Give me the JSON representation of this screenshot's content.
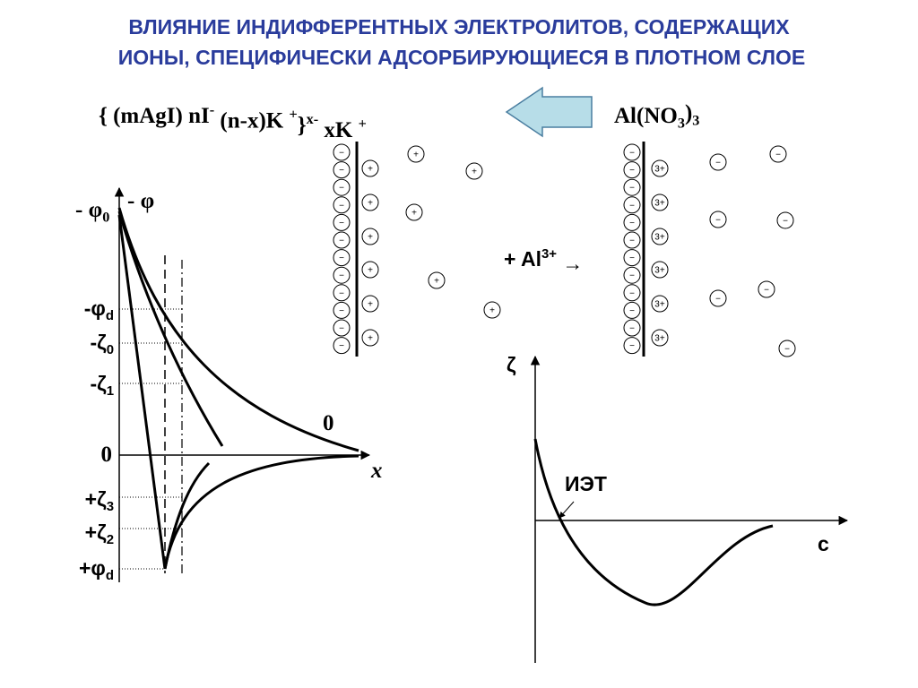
{
  "title": [
    "ВЛИЯНИЕ ИНДИФФЕРЕНТНЫХ ЭЛЕКТРОЛИТОВ, СОДЕРЖАЩИХ",
    "ИОНЫ, СПЕЦИФИЧЕСКИ  АДСОРБИРУЮЩИЕСЯ В ПЛОТНОМ СЛОЕ"
  ],
  "micelle": [
    "{ (mAgI) nI",
    "-",
    " (n-x)K ",
    "+",
    "}",
    "x-",
    " xK ",
    "+"
  ],
  "electrolyte": [
    "Al(NO",
    "3",
    ")",
    "3"
  ],
  "ions": {
    "plus": "+",
    "minus": "−",
    "al": "3+"
  },
  "added_ion": [
    "+ Al",
    "3+",
    " →"
  ],
  "potential_plot": {
    "phi0": [
      "- φ",
      "0"
    ],
    "phi": "- φ",
    "left_labels": [
      [
        "-φ",
        "d"
      ],
      [
        "-ζ",
        "0"
      ],
      [
        "-ζ",
        "1"
      ],
      [
        "0"
      ],
      [
        "+ζ",
        "3"
      ],
      [
        "+ζ",
        "2"
      ],
      [
        "+φ",
        "d"
      ]
    ],
    "curve_zero": "0",
    "x_axis": "x"
  },
  "zeta_plot": {
    "y_axis": "ζ",
    "iep": "ИЭТ",
    "x_axis": "c"
  }
}
